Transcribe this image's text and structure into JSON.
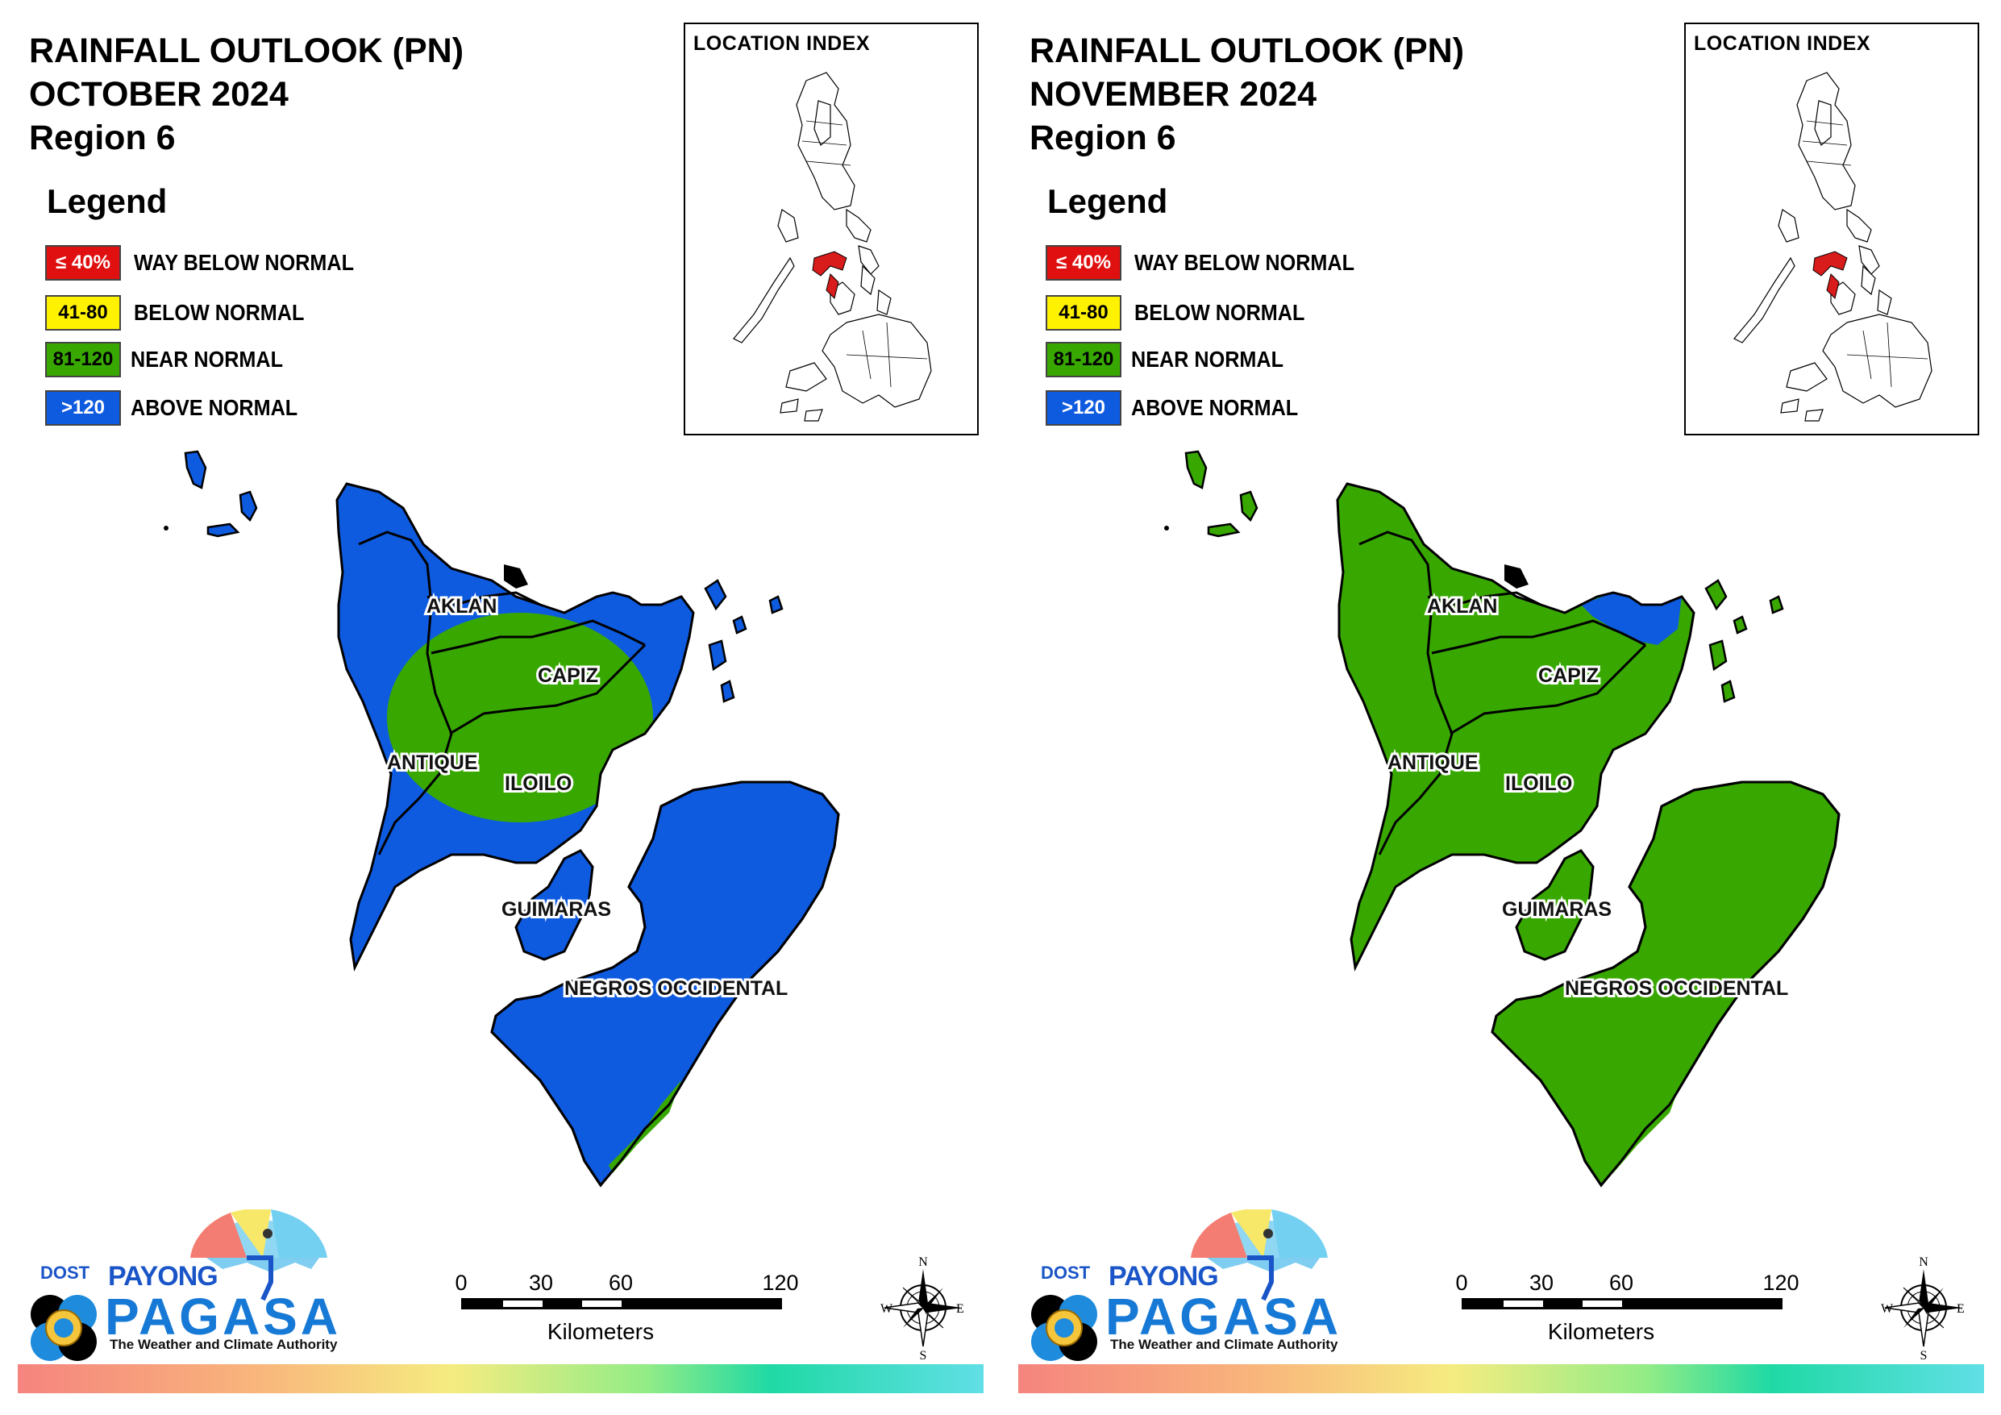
{
  "colors": {
    "way_below": "#e01010",
    "below": "#fff200",
    "near": "#38a800",
    "above": "#0e5be0",
    "highlight": "#d81b1b"
  },
  "panels": [
    {
      "title_line1": "RAINFALL OUTLOOK (PN)",
      "title_line2": "OCTOBER 2024",
      "title_line3": "Region 6",
      "base_category": "above",
      "accent_category": "near",
      "accent_area": "central"
    },
    {
      "title_line1": "RAINFALL OUTLOOK (PN)",
      "title_line2": "NOVEMBER 2024",
      "title_line3": "Region 6",
      "base_category": "near",
      "accent_category": "above",
      "accent_area": "north-capiz"
    }
  ],
  "legend": {
    "heading": "Legend",
    "items": [
      {
        "swatch_text": "≤ 40%",
        "label": "WAY BELOW NORMAL",
        "category": "way_below"
      },
      {
        "swatch_text": "41-80",
        "label": "BELOW NORMAL",
        "category": "below"
      },
      {
        "swatch_text": "81-120",
        "label": "NEAR NORMAL",
        "category": "near"
      },
      {
        "swatch_text": ">120",
        "label": "ABOVE NORMAL",
        "category": "above"
      }
    ]
  },
  "location_index": {
    "title": "LOCATION INDEX"
  },
  "provinces": {
    "aklan": "AKLAN",
    "capiz": "CAPIZ",
    "antique": "ANTIQUE",
    "iloilo": "ILOILO",
    "guimaras": "GUIMARAS",
    "negros": "NEGROS OCCIDENTAL"
  },
  "scale": {
    "ticks": [
      "0",
      "30",
      "60",
      "120"
    ],
    "unit": "Kilometers"
  },
  "compass": {
    "n": "N",
    "s": "S",
    "e": "E",
    "w": "W"
  },
  "logo": {
    "dost": "DOST",
    "payong": "PAYONG",
    "pagasa": "PAGASA",
    "tagline": "The Weather and Climate Authority"
  }
}
